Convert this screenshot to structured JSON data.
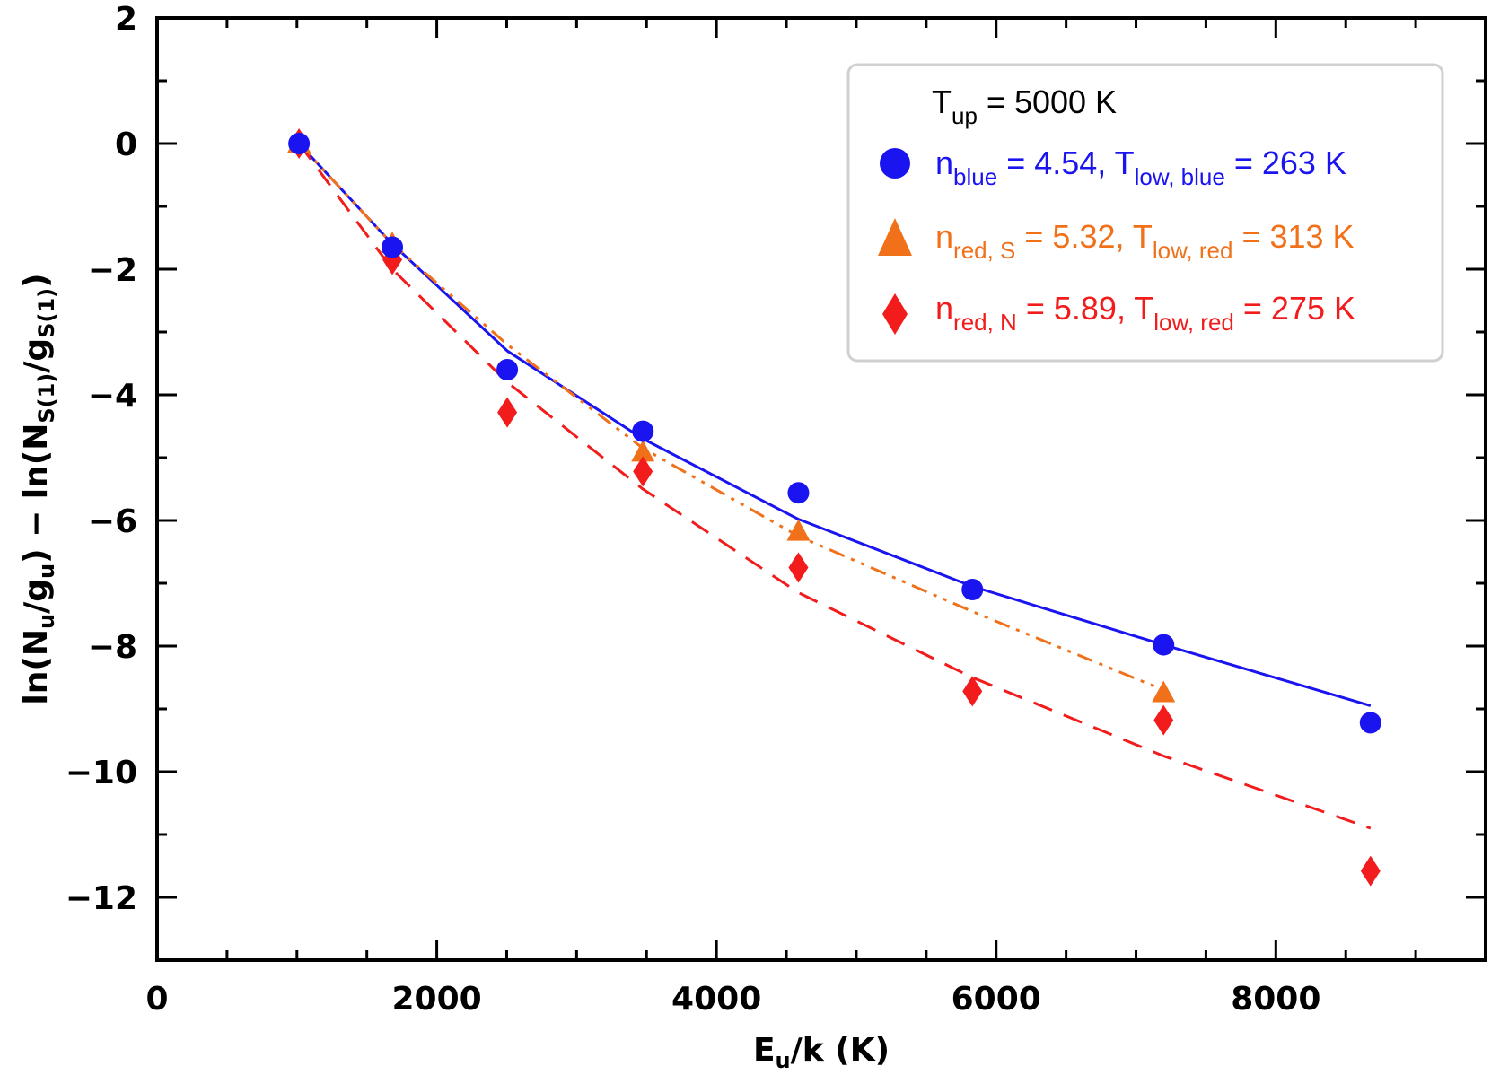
{
  "chart_data": {
    "type": "scatter",
    "title": "",
    "xlabel": {
      "main": "E",
      "sub": "u",
      "rest": "/k (K)"
    },
    "ylabel": {
      "p1": "ln(N",
      "s1": "u",
      "p2": "/g",
      "s2": "u",
      "p3": ")  −  ln(N",
      "s3": "S(1)",
      "p4": "/g",
      "s4": "S(1)",
      "p5": ")"
    },
    "xlim": [
      0,
      9500
    ],
    "ylim": [
      -13,
      2
    ],
    "x_ticks": [
      0,
      2000,
      4000,
      6000,
      8000
    ],
    "x_tick_labels": [
      "0",
      "2000",
      "4000",
      "6000",
      "8000"
    ],
    "y_ticks": [
      2,
      0,
      -2,
      -4,
      -6,
      -8,
      -10,
      -12
    ],
    "y_tick_labels": [
      "2",
      "0",
      "−2",
      "−4",
      "−6",
      "−8",
      "−10",
      "−12"
    ],
    "grid": false,
    "legend_position": "top-right",
    "legend_header": {
      "main": "T",
      "sub": "up",
      "rest": " = 5000 K"
    },
    "series": [
      {
        "key": "blue",
        "color": "#1a14f0",
        "marker": "circle",
        "line_style": "solid",
        "legend": {
          "t1": "n",
          "s1": "blue",
          "t2": " = 4.54, T",
          "s2": "low, blue",
          "t3": " = 263 K"
        },
        "points": {
          "x": [
            1015,
            1682,
            2504,
            3474,
            4586,
            5830,
            7197,
            8677
          ],
          "y": [
            0.0,
            -1.65,
            -3.6,
            -4.58,
            -5.56,
            -7.1,
            -7.98,
            -9.22
          ]
        },
        "fit": {
          "x": [
            1015,
            1682,
            2504,
            3474,
            4586,
            5830,
            7197,
            8677
          ],
          "y": [
            0.0,
            -1.6,
            -3.3,
            -4.7,
            -5.98,
            -7.05,
            -7.98,
            -8.95
          ]
        }
      },
      {
        "key": "red_s",
        "color": "#f0711a",
        "marker": "triangle",
        "line_style": "dash-dot-dot",
        "legend": {
          "t1": "n",
          "s1": "red, S",
          "t2": " = 5.32, T",
          "s2": "low, red",
          "t3": " = 313 K"
        },
        "points": {
          "x": [
            1015,
            1682,
            3474,
            4586,
            7197
          ],
          "y": [
            0.0,
            -1.6,
            -4.92,
            -6.18,
            -8.75
          ]
        },
        "fit": {
          "x": [
            1015,
            1682,
            2504,
            3474,
            4586,
            5830,
            7197
          ],
          "y": [
            0.0,
            -1.6,
            -3.2,
            -4.85,
            -6.25,
            -7.45,
            -8.7
          ]
        }
      },
      {
        "key": "red_n",
        "color": "#f21c1c",
        "marker": "diamond",
        "line_style": "dashed",
        "legend": {
          "t1": "n",
          "s1": "red, N",
          "t2": " = 5.89, T",
          "s2": "low, red",
          "t3": " = 275 K"
        },
        "points": {
          "x": [
            1015,
            1682,
            2504,
            3474,
            4586,
            5830,
            7197,
            8677
          ],
          "y": [
            0.0,
            -1.85,
            -4.28,
            -5.22,
            -6.75,
            -8.72,
            -9.18,
            -11.58
          ]
        },
        "fit": {
          "x": [
            1015,
            1682,
            2504,
            3474,
            4586,
            5830,
            7197,
            8677
          ],
          "y": [
            0.0,
            -2.0,
            -3.8,
            -5.5,
            -7.15,
            -8.5,
            -9.75,
            -10.9
          ]
        }
      }
    ]
  }
}
